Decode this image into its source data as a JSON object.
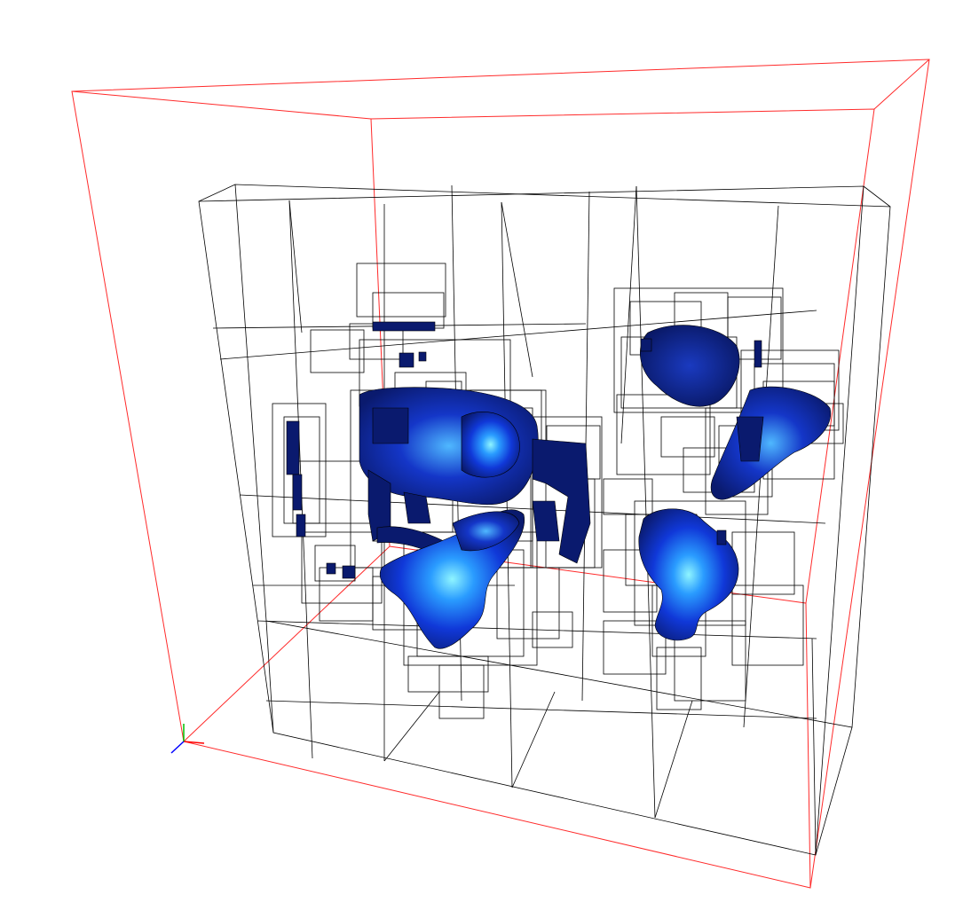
{
  "scene": {
    "background": "#ffffff",
    "outer_box_color": "#ff2a2a",
    "grid_color": "#000000",
    "blob_colors": {
      "dark": "#0a1a6e",
      "mid": "#1038d8",
      "bright": "#2a9cff",
      "highlight": "#8ff5ff"
    },
    "axes": {
      "x_color": "#ff0000",
      "y_color": "#00c000",
      "z_color": "#0000ff"
    }
  }
}
